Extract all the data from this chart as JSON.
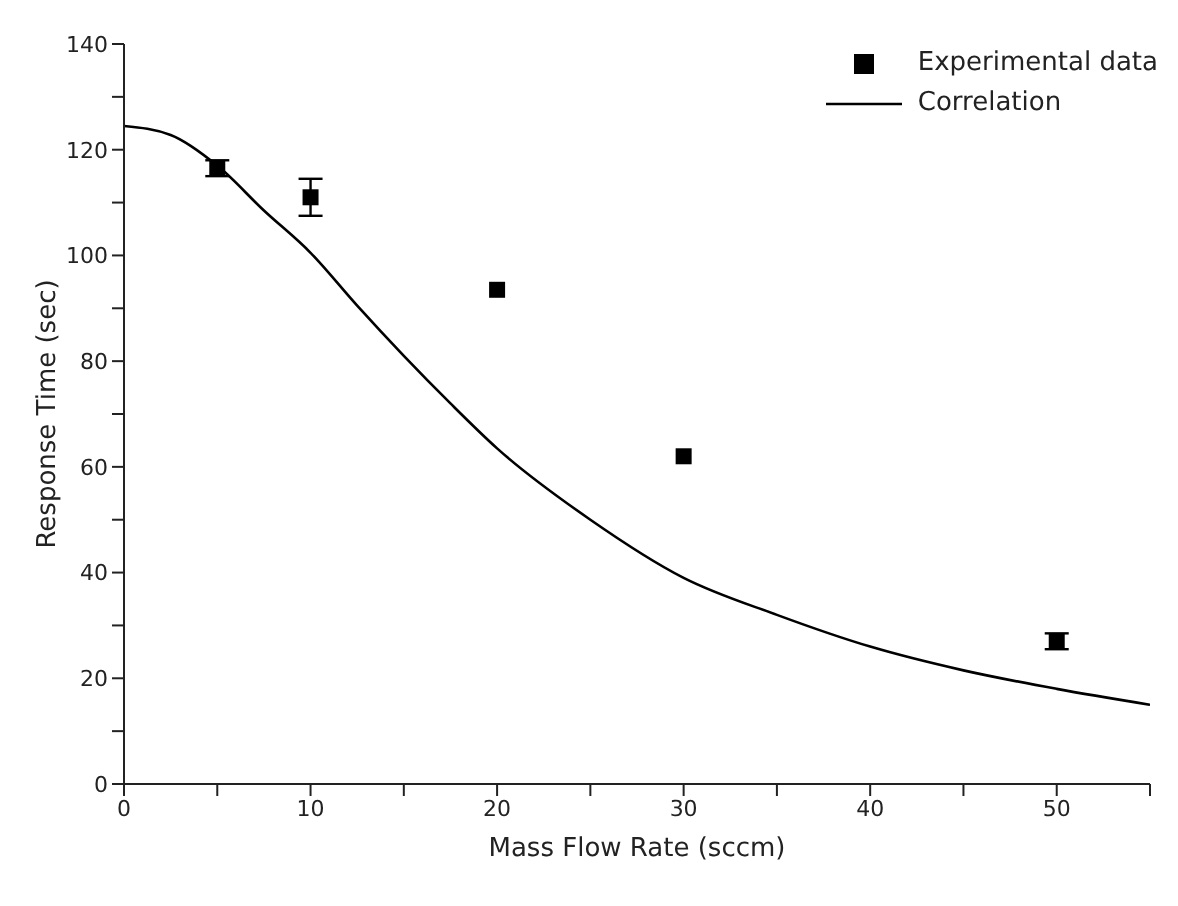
{
  "chart_data": {
    "type": "scatter",
    "xlabel": "Mass Flow Rate (sccm)",
    "ylabel": "Response Time (sec)",
    "xlim": [
      0,
      55
    ],
    "ylim": [
      0,
      140
    ],
    "xticks": [
      0,
      {
        "value": 5,
        "label": null
      },
      10,
      {
        "value": 15,
        "label": null
      },
      20,
      {
        "value": 25,
        "label": null
      },
      30,
      {
        "value": 35,
        "label": null
      },
      40,
      {
        "value": 45,
        "label": null
      },
      50,
      {
        "value": 55,
        "label": null
      }
    ],
    "yticks": [
      0,
      {
        "value": 10,
        "label": null
      },
      20,
      {
        "value": 30,
        "label": null
      },
      40,
      {
        "value": 50,
        "label": null
      },
      60,
      {
        "value": 70,
        "label": null
      },
      80,
      {
        "value": 90,
        "label": null
      },
      100,
      {
        "value": 110,
        "label": null
      },
      120,
      {
        "value": 130,
        "label": null
      },
      140
    ],
    "grid": false,
    "legend": "top right",
    "series": [
      {
        "name": "Experimental data",
        "color": "#000000",
        "marker": "square",
        "x": [
          5,
          10,
          20,
          30,
          50
        ],
        "values": [
          116.5,
          111,
          93.5,
          62,
          27
        ],
        "errors": [
          1.5,
          3.5,
          null,
          null,
          1.5
        ]
      },
      {
        "name": "Correlation",
        "type": "line",
        "color": "#000000",
        "marker": "none",
        "line_style": "solid",
        "x": [
          0,
          2.5,
          5,
          7.5,
          10,
          12.5,
          15,
          17.5,
          20,
          25,
          30,
          35,
          40,
          45,
          50,
          55
        ],
        "values": [
          124.5,
          122.8,
          117,
          108.5,
          100.5,
          90.5,
          81,
          72,
          63.5,
          50,
          39,
          32,
          26,
          21.5,
          18,
          15
        ]
      }
    ]
  }
}
